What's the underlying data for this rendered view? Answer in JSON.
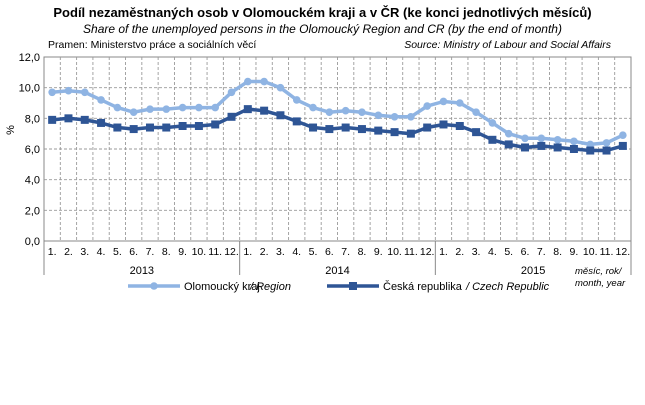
{
  "chart_data": {
    "type": "line",
    "title": "Podíl nezaměstnaných osob v Olomouckém kraji a v ČR (ke konci jednotlivých měsíců)",
    "subtitle": "Share of the unemployed persons in the Olomoucký Region and CR (by the end of month)",
    "source_left": "Pramen: Ministerstvo práce a sociálních věcí",
    "source_right": "Source: Ministry of Labour and Social Affairs",
    "ylabel": "%",
    "ylim": [
      0,
      12
    ],
    "yticks": [
      "0,0",
      "2,0",
      "4,0",
      "6,0",
      "8,0",
      "10,0",
      "12,0"
    ],
    "grid": true,
    "month_labels": [
      "1.",
      "2.",
      "3.",
      "4.",
      "5.",
      "6.",
      "7.",
      "8.",
      "9.",
      "10.",
      "11.",
      "12."
    ],
    "years": [
      "2013",
      "2014",
      "2015"
    ],
    "x_unit_label": [
      "měsíc, rok/",
      "month, year"
    ],
    "legend_position": "bottom",
    "series": [
      {
        "name": "Olomoucký kraj",
        "name_en": "/ Region",
        "color": "#8fb4e3",
        "values": [
          9.7,
          9.8,
          9.7,
          9.2,
          8.7,
          8.4,
          8.6,
          8.6,
          8.7,
          8.7,
          8.7,
          9.7,
          10.4,
          10.4,
          10.0,
          9.2,
          8.7,
          8.4,
          8.5,
          8.4,
          8.2,
          8.1,
          8.1,
          8.8,
          9.1,
          9.0,
          8.4,
          7.7,
          7.0,
          6.7,
          6.7,
          6.6,
          6.5,
          6.3,
          6.4,
          6.9
        ]
      },
      {
        "name": "Česká republika",
        "name_en": "/ Czech Republic",
        "color": "#2e5595",
        "values": [
          7.9,
          8.0,
          7.9,
          7.7,
          7.4,
          7.3,
          7.4,
          7.4,
          7.5,
          7.5,
          7.6,
          8.1,
          8.6,
          8.5,
          8.2,
          7.8,
          7.4,
          7.3,
          7.4,
          7.3,
          7.2,
          7.1,
          7.0,
          7.4,
          7.6,
          7.5,
          7.1,
          6.6,
          6.3,
          6.1,
          6.2,
          6.1,
          6.0,
          5.9,
          5.9,
          6.2
        ]
      }
    ]
  }
}
